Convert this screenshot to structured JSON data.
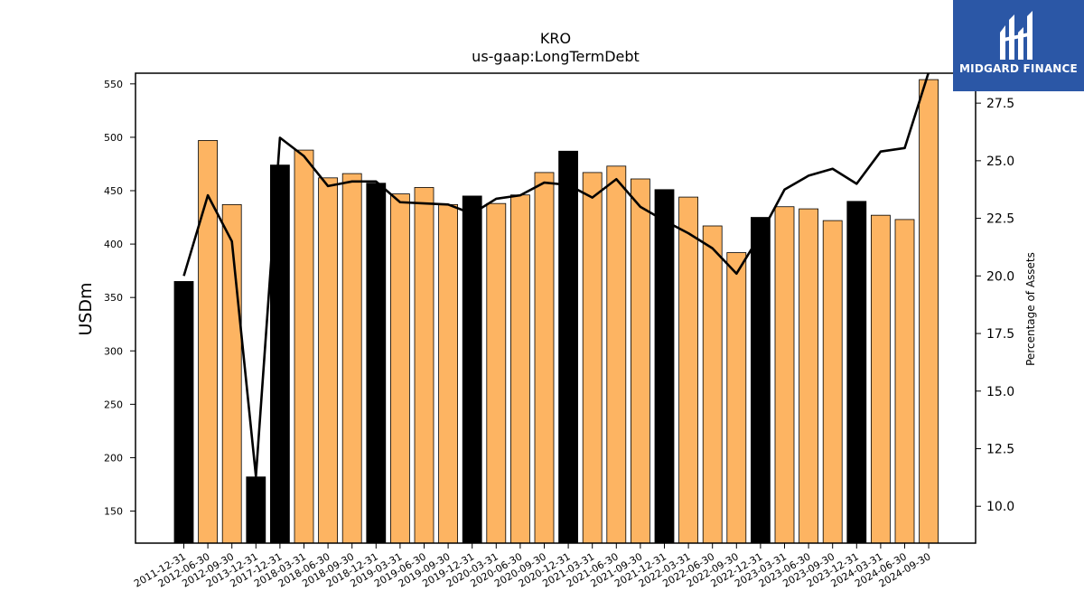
{
  "chart_data": {
    "type": "bar",
    "title": "KRO",
    "subtitle": "us-gaap:LongTermDebt",
    "ylabel": "USDm",
    "y2label": "Percentage of Assets",
    "ylim": [
      120,
      560
    ],
    "y2lim": [
      8.4,
      28.8
    ],
    "yticks": [
      150,
      200,
      250,
      300,
      350,
      400,
      450,
      500,
      550
    ],
    "y2ticks": [
      "10.0",
      "12.5",
      "15.0",
      "17.5",
      "20.0",
      "22.5",
      "25.0",
      "27.5"
    ],
    "bar_colors": {
      "annual": "#000000",
      "quarterly": "#fdb462"
    },
    "line_color": "#000000",
    "grid": false,
    "categories": [
      "2011-12-31",
      "2012-06-30",
      "2012-09-30",
      "2013-12-31",
      "2017-12-31",
      "2018-03-31",
      "2018-06-30",
      "2018-09-30",
      "2018-12-31",
      "2019-03-31",
      "2019-06-30",
      "2019-09-30",
      "2019-12-31",
      "2020-03-31",
      "2020-06-30",
      "2020-09-30",
      "2020-12-31",
      "2021-03-31",
      "2021-06-30",
      "2021-09-30",
      "2021-12-31",
      "2022-03-31",
      "2022-06-30",
      "2022-09-30",
      "2022-12-31",
      "2023-03-31",
      "2023-06-30",
      "2023-09-30",
      "2023-12-31",
      "2024-03-31",
      "2024-06-30",
      "2024-09-30"
    ],
    "series": [
      {
        "kind": "bar",
        "values": [
          365,
          497,
          437,
          182,
          474,
          488,
          462,
          466,
          457,
          447,
          453,
          437,
          445,
          438,
          446,
          467,
          487,
          467,
          473,
          461,
          451,
          444,
          417,
          392,
          425,
          435,
          433,
          422,
          440,
          427,
          423,
          554
        ],
        "annual": [
          true,
          false,
          false,
          true,
          true,
          false,
          false,
          false,
          true,
          false,
          false,
          false,
          true,
          false,
          false,
          false,
          true,
          false,
          false,
          false,
          true,
          false,
          false,
          false,
          true,
          false,
          false,
          false,
          true,
          false,
          false,
          false
        ]
      },
      {
        "kind": "line",
        "axis": "right",
        "values": [
          20.0,
          23.5,
          21.5,
          11.3,
          26.0,
          25.2,
          23.9,
          24.1,
          24.1,
          23.2,
          23.15,
          23.1,
          22.7,
          23.35,
          23.5,
          24.05,
          23.95,
          23.4,
          24.2,
          23.0,
          22.4,
          21.85,
          21.2,
          20.1,
          21.8,
          23.75,
          24.35,
          24.65,
          24.0,
          25.4,
          25.55,
          28.85
        ]
      }
    ]
  },
  "logo": {
    "text": "MIDGARD FINANCE"
  }
}
